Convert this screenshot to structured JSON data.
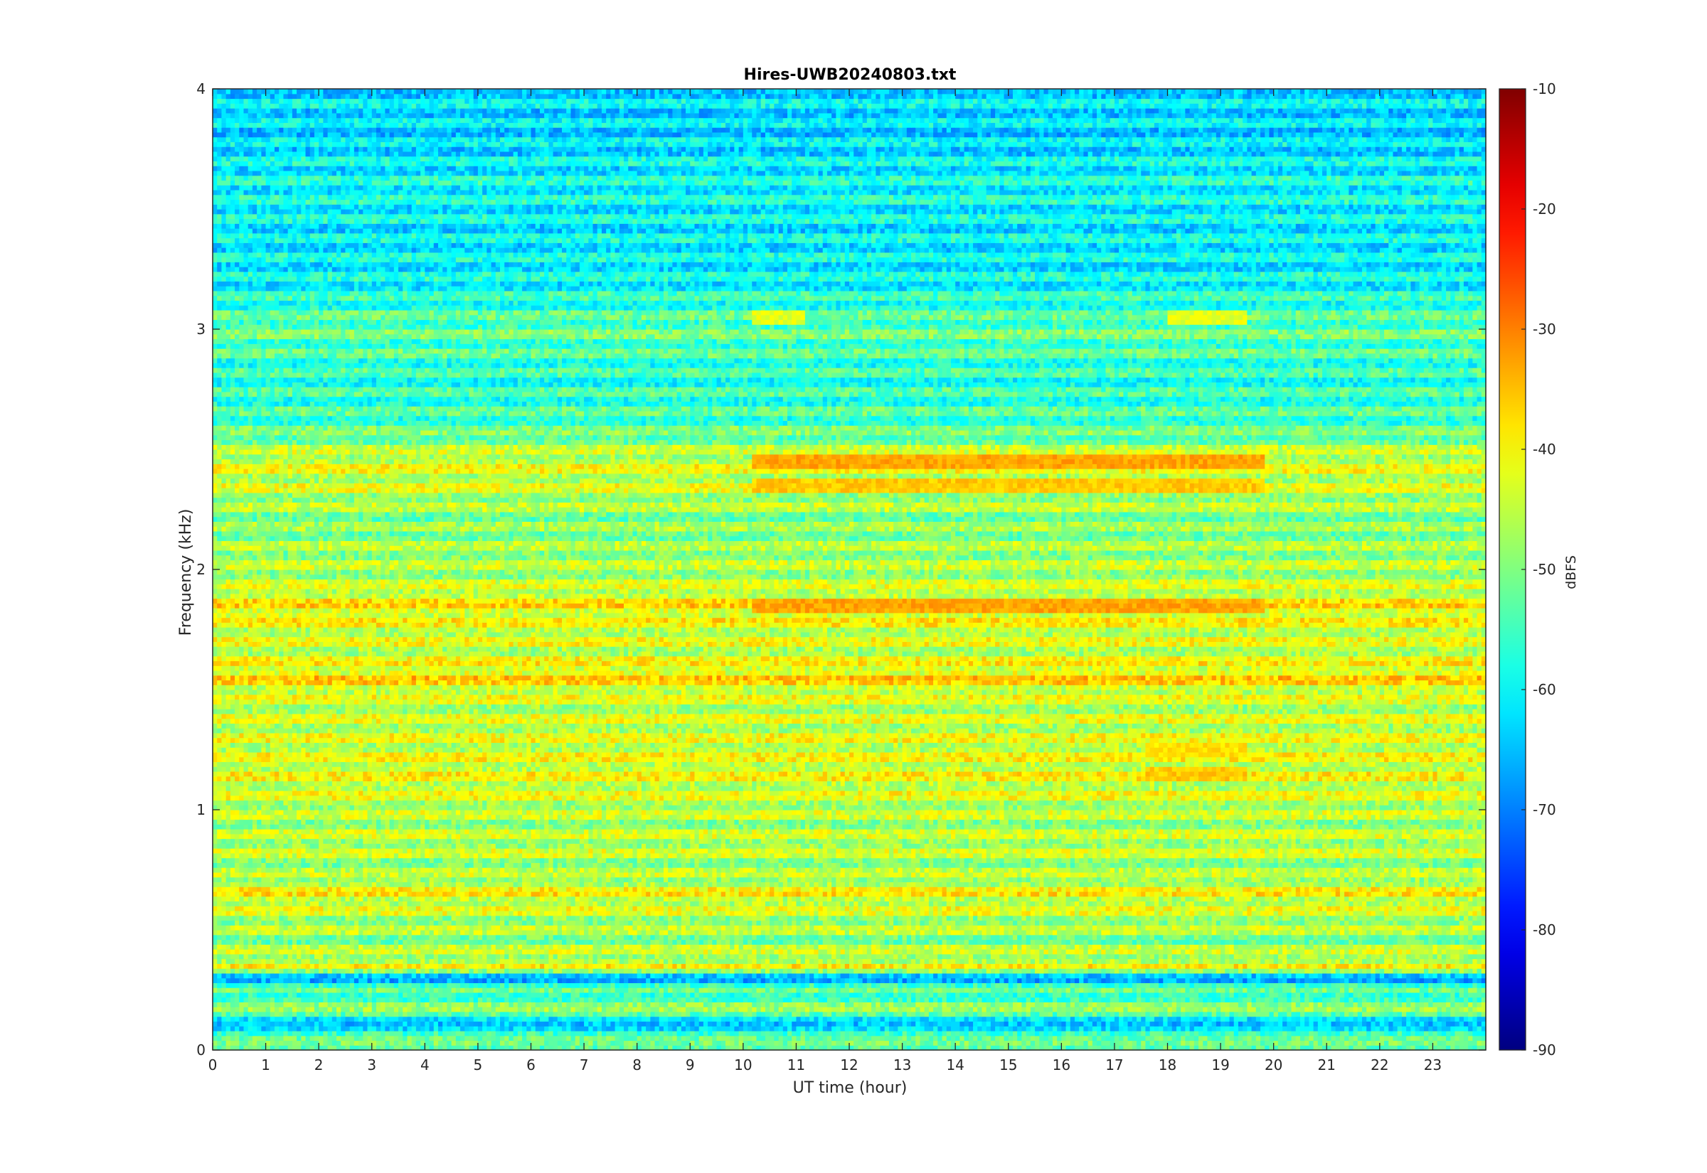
{
  "chart_data": {
    "type": "heatmap",
    "title": "Hires-UWB20240803.txt",
    "xlabel": "UT time (hour)",
    "ylabel": "Frequency (kHz)",
    "xlim": [
      0,
      24
    ],
    "ylim": [
      0,
      4
    ],
    "x_ticks": [
      "0",
      "1",
      "2",
      "3",
      "4",
      "5",
      "6",
      "7",
      "8",
      "9",
      "10",
      "11",
      "12",
      "13",
      "14",
      "15",
      "16",
      "17",
      "18",
      "19",
      "20",
      "21",
      "22",
      "23"
    ],
    "y_ticks": [
      "0",
      "1",
      "2",
      "3",
      "4"
    ],
    "colorbar": {
      "label": "dBFS",
      "range": [
        -90,
        -10
      ],
      "ticks": [
        "-10",
        "-20",
        "-30",
        "-40",
        "-50",
        "-60",
        "-70",
        "-80",
        "-90"
      ],
      "colormap": "jet"
    },
    "band_levels_dBFS": [
      {
        "freq_khz": 0.02,
        "level": -56
      },
      {
        "freq_khz": 0.06,
        "level": -46
      },
      {
        "freq_khz": 0.1,
        "level": -72
      },
      {
        "freq_khz": 0.15,
        "level": -50
      },
      {
        "freq_khz": 0.25,
        "level": -54
      },
      {
        "freq_khz": 0.3,
        "level": -66
      },
      {
        "freq_khz": 0.35,
        "level": -42
      },
      {
        "freq_khz": 0.45,
        "level": -49
      },
      {
        "freq_khz": 0.55,
        "level": -46
      },
      {
        "freq_khz": 0.65,
        "level": -41
      },
      {
        "freq_khz": 0.75,
        "level": -48
      },
      {
        "freq_khz": 0.85,
        "level": -45
      },
      {
        "freq_khz": 0.95,
        "level": -47
      },
      {
        "freq_khz": 1.05,
        "level": -44
      },
      {
        "freq_khz": 1.15,
        "level": -42
      },
      {
        "freq_khz": 1.25,
        "level": -43
      },
      {
        "freq_khz": 1.35,
        "level": -44
      },
      {
        "freq_khz": 1.45,
        "level": -45
      },
      {
        "freq_khz": 1.55,
        "level": -38
      },
      {
        "freq_khz": 1.65,
        "level": -44
      },
      {
        "freq_khz": 1.75,
        "level": -43
      },
      {
        "freq_khz": 1.85,
        "level": -39
      },
      {
        "freq_khz": 1.95,
        "level": -46
      },
      {
        "freq_khz": 2.05,
        "level": -47
      },
      {
        "freq_khz": 2.2,
        "level": -50
      },
      {
        "freq_khz": 2.35,
        "level": -44
      },
      {
        "freq_khz": 2.45,
        "level": -43
      },
      {
        "freq_khz": 2.6,
        "level": -54
      },
      {
        "freq_khz": 2.8,
        "level": -57
      },
      {
        "freq_khz": 3.0,
        "level": -52
      },
      {
        "freq_khz": 3.2,
        "level": -60
      },
      {
        "freq_khz": 3.4,
        "level": -61
      },
      {
        "freq_khz": 3.6,
        "level": -59
      },
      {
        "freq_khz": 3.8,
        "level": -63
      },
      {
        "freq_khz": 3.95,
        "level": -62
      }
    ],
    "enhanced_regions": [
      {
        "t_start": 10.2,
        "t_end": 19.8,
        "freq_khz": 2.45,
        "level": -33
      },
      {
        "t_start": 10.2,
        "t_end": 19.8,
        "freq_khz": 2.35,
        "level": -36
      },
      {
        "t_start": 10.2,
        "t_end": 19.8,
        "freq_khz": 1.85,
        "level": -33
      },
      {
        "t_start": 17.6,
        "t_end": 19.5,
        "freq_khz": 1.15,
        "level": -36
      },
      {
        "t_start": 17.6,
        "t_end": 19.5,
        "freq_khz": 1.25,
        "level": -38
      },
      {
        "t_start": 10.2,
        "t_end": 11.2,
        "freq_khz": 3.05,
        "level": -42
      },
      {
        "t_start": 18.0,
        "t_end": 19.5,
        "freq_khz": 3.05,
        "level": -42
      }
    ]
  }
}
